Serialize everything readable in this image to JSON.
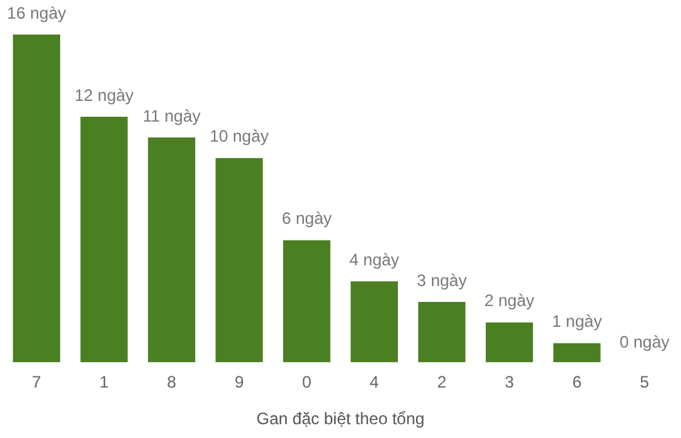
{
  "chart_data": {
    "type": "bar",
    "xlabel": "Gan đặc biệt theo tổng",
    "categories": [
      "7",
      "1",
      "8",
      "9",
      "0",
      "4",
      "2",
      "3",
      "6",
      "5"
    ],
    "values": [
      16,
      12,
      11,
      10,
      6,
      4,
      3,
      2,
      1,
      0
    ],
    "value_labels": [
      "16 ngày",
      "12 ngày",
      "11 ngày",
      "10 ngày",
      "6 ngày",
      "4 ngày",
      "3 ngày",
      "2 ngày",
      "1 ngày",
      "0 ngày"
    ],
    "color": "#4a7f22",
    "grid": false,
    "legend": false,
    "tick_labels": "x"
  }
}
